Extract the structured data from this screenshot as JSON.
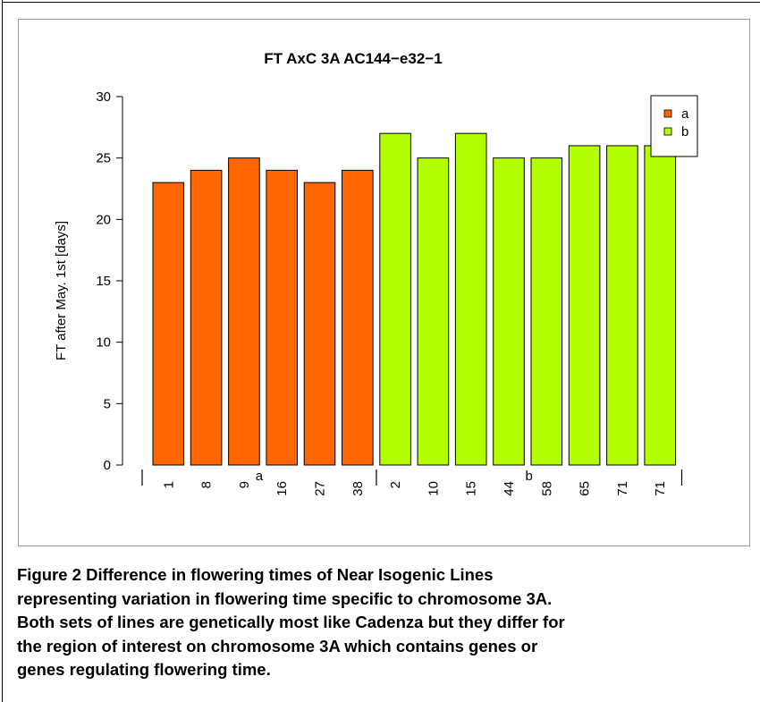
{
  "chart_data": {
    "type": "bar",
    "title": "FT AxC 3A AC144−e32−1",
    "ylabel": "FT after May. 1st [days]",
    "xlabel": "",
    "ylim": [
      0,
      30
    ],
    "yticks": [
      "0",
      "5",
      "10",
      "15",
      "20",
      "25",
      "30"
    ],
    "grid": false,
    "legend_position": "top-right",
    "groups": [
      {
        "name": "a",
        "color": "#ff6600",
        "categories": [
          "1",
          "8",
          "9",
          "16",
          "27",
          "38"
        ],
        "values": [
          23,
          24,
          25,
          24,
          23,
          24
        ]
      },
      {
        "name": "b",
        "color": "#b3ff00",
        "categories": [
          "2",
          "10",
          "15",
          "44",
          "58",
          "65",
          "71",
          "71"
        ],
        "values": [
          27,
          25,
          27,
          25,
          25,
          26,
          26,
          26
        ]
      }
    ],
    "legend": [
      {
        "label": "a",
        "color": "#ff6600"
      },
      {
        "label": "b",
        "color": "#b3ff00"
      }
    ]
  },
  "caption": {
    "lines": [
      "Figure 2 Difference in flowering times of Near Isogenic Lines",
      "representing variation in flowering time specific to chromosome 3A.",
      "Both sets of lines are genetically most like Cadenza but they differ for",
      "the region of interest on chromosome 3A which contains genes or",
      "genes regulating flowering time."
    ]
  }
}
